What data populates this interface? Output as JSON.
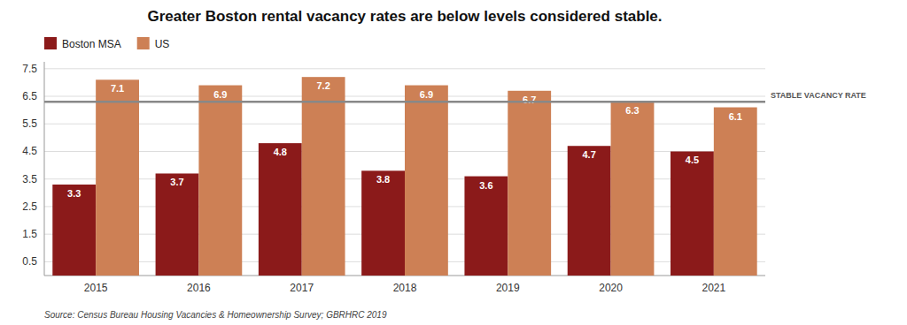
{
  "chart_data": {
    "type": "bar",
    "title": "Greater Boston rental vacancy rates are below levels considered stable.",
    "categories": [
      "2015",
      "2016",
      "2017",
      "2018",
      "2019",
      "2020",
      "2021"
    ],
    "series": [
      {
        "name": "Boston MSA",
        "color": "#8B1A1A",
        "values": [
          3.3,
          3.7,
          4.8,
          3.8,
          3.6,
          4.7,
          4.5
        ]
      },
      {
        "name": "US",
        "color": "#CD8055",
        "values": [
          7.1,
          6.9,
          7.2,
          6.9,
          6.7,
          6.3,
          6.1
        ]
      }
    ],
    "ylim": [
      0,
      7.75
    ],
    "yticks": [
      0.5,
      1.5,
      2.5,
      3.5,
      4.5,
      5.5,
      6.5,
      7.5
    ],
    "grid": true,
    "legend": "upper left",
    "data_labels": true,
    "annotations": [
      {
        "text": "STABLE VACANCY RATE",
        "y": 6.3,
        "color": "#888888"
      },
      {
        "text": "Source: Census Bureau Housing Vacancies & Homeownership Survey; GBRHRC 2019"
      }
    ]
  }
}
